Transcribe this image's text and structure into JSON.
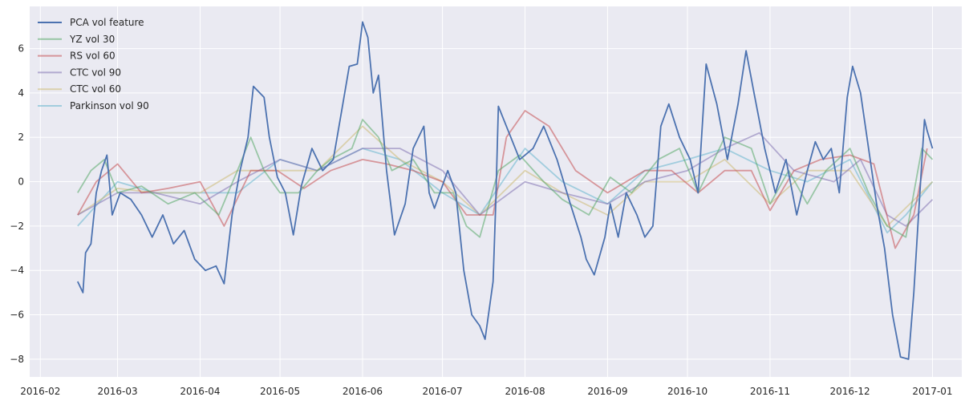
{
  "chart_data": {
    "type": "line",
    "title": "",
    "xlabel": "",
    "ylabel": "",
    "xlim": [
      "2016-01-28",
      "2017-01-12"
    ],
    "ylim": [
      -8.8,
      7.9
    ],
    "grid": true,
    "legend_placement": "top-left",
    "x_ticks": [
      "2016-02",
      "2016-03",
      "2016-04",
      "2016-05",
      "2016-06",
      "2016-07",
      "2016-08",
      "2016-09",
      "2016-10",
      "2016-11",
      "2016-12",
      "2017-01"
    ],
    "x_tick_dates": [
      "2016-02-01",
      "2016-03-01",
      "2016-04-01",
      "2016-05-01",
      "2016-06-01",
      "2016-07-01",
      "2016-08-01",
      "2016-09-01",
      "2016-10-01",
      "2016-11-01",
      "2016-12-01",
      "2017-01-01"
    ],
    "y_ticks": [
      6,
      4,
      2,
      0,
      -2,
      -4,
      -6,
      -8
    ],
    "y_tick_labels": [
      "6",
      "4",
      "2",
      "0",
      "−2",
      "−4",
      "−6",
      "−8"
    ],
    "series": [
      {
        "name": "PCA vol feature",
        "color": "#4c72b0",
        "opacity": 1.0,
        "points": [
          [
            "2016-02-15",
            -4.5
          ],
          [
            "2016-02-17",
            -5.0
          ],
          [
            "2016-02-18",
            -3.2
          ],
          [
            "2016-02-20",
            -2.8
          ],
          [
            "2016-02-22",
            -0.5
          ],
          [
            "2016-02-24",
            0.5
          ],
          [
            "2016-02-26",
            1.2
          ],
          [
            "2016-02-28",
            -1.5
          ],
          [
            "2016-03-02",
            -0.5
          ],
          [
            "2016-03-06",
            -0.8
          ],
          [
            "2016-03-10",
            -1.5
          ],
          [
            "2016-03-14",
            -2.5
          ],
          [
            "2016-03-18",
            -1.5
          ],
          [
            "2016-03-22",
            -2.8
          ],
          [
            "2016-03-26",
            -2.2
          ],
          [
            "2016-03-30",
            -3.5
          ],
          [
            "2016-04-03",
            -4.0
          ],
          [
            "2016-04-07",
            -3.8
          ],
          [
            "2016-04-10",
            -4.6
          ],
          [
            "2016-04-13",
            -1.5
          ],
          [
            "2016-04-16",
            0.5
          ],
          [
            "2016-04-19",
            2.0
          ],
          [
            "2016-04-21",
            4.3
          ],
          [
            "2016-04-25",
            3.8
          ],
          [
            "2016-04-27",
            2.0
          ],
          [
            "2016-04-30",
            0.2
          ],
          [
            "2016-05-03",
            -0.5
          ],
          [
            "2016-05-06",
            -2.4
          ],
          [
            "2016-05-09",
            -0.2
          ],
          [
            "2016-05-13",
            1.5
          ],
          [
            "2016-05-17",
            0.5
          ],
          [
            "2016-05-21",
            1.0
          ],
          [
            "2016-05-25",
            3.8
          ],
          [
            "2016-05-27",
            5.2
          ],
          [
            "2016-05-30",
            5.3
          ],
          [
            "2016-06-01",
            7.2
          ],
          [
            "2016-06-03",
            6.5
          ],
          [
            "2016-06-05",
            4.0
          ],
          [
            "2016-06-07",
            4.8
          ],
          [
            "2016-06-10",
            0.5
          ],
          [
            "2016-06-13",
            -2.4
          ],
          [
            "2016-06-17",
            -1.0
          ],
          [
            "2016-06-20",
            1.5
          ],
          [
            "2016-06-24",
            2.5
          ],
          [
            "2016-06-26",
            -0.5
          ],
          [
            "2016-06-28",
            -1.2
          ],
          [
            "2016-07-03",
            0.5
          ],
          [
            "2016-07-06",
            -0.5
          ],
          [
            "2016-07-09",
            -4.0
          ],
          [
            "2016-07-12",
            -6.0
          ],
          [
            "2016-07-15",
            -6.5
          ],
          [
            "2016-07-17",
            -7.1
          ],
          [
            "2016-07-20",
            -4.5
          ],
          [
            "2016-07-21",
            -1.0
          ],
          [
            "2016-07-22",
            3.4
          ],
          [
            "2016-07-25",
            2.5
          ],
          [
            "2016-07-30",
            1.0
          ],
          [
            "2016-08-04",
            1.5
          ],
          [
            "2016-08-08",
            2.5
          ],
          [
            "2016-08-13",
            1.0
          ],
          [
            "2016-08-18",
            -1.0
          ],
          [
            "2016-08-22",
            -2.5
          ],
          [
            "2016-08-24",
            -3.5
          ],
          [
            "2016-08-27",
            -4.2
          ],
          [
            "2016-08-31",
            -2.5
          ],
          [
            "2016-09-02",
            -1.0
          ],
          [
            "2016-09-05",
            -2.5
          ],
          [
            "2016-09-08",
            -0.5
          ],
          [
            "2016-09-12",
            -1.5
          ],
          [
            "2016-09-15",
            -2.5
          ],
          [
            "2016-09-18",
            -2.0
          ],
          [
            "2016-09-21",
            2.5
          ],
          [
            "2016-09-24",
            3.5
          ],
          [
            "2016-09-28",
            2.0
          ],
          [
            "2016-10-02",
            1.0
          ],
          [
            "2016-10-05",
            -0.5
          ],
          [
            "2016-10-08",
            5.3
          ],
          [
            "2016-10-12",
            3.5
          ],
          [
            "2016-10-16",
            1.0
          ],
          [
            "2016-10-20",
            3.5
          ],
          [
            "2016-10-23",
            5.9
          ],
          [
            "2016-10-26",
            4.0
          ],
          [
            "2016-10-30",
            1.5
          ],
          [
            "2016-11-03",
            -0.5
          ],
          [
            "2016-11-07",
            1.0
          ],
          [
            "2016-11-11",
            -1.5
          ],
          [
            "2016-11-15",
            0.5
          ],
          [
            "2016-11-18",
            1.8
          ],
          [
            "2016-11-21",
            1.0
          ],
          [
            "2016-11-24",
            1.5
          ],
          [
            "2016-11-27",
            -0.5
          ],
          [
            "2016-11-30",
            3.8
          ],
          [
            "2016-12-02",
            5.2
          ],
          [
            "2016-12-05",
            4.0
          ],
          [
            "2016-12-08",
            1.5
          ],
          [
            "2016-12-11",
            -1.0
          ],
          [
            "2016-12-14",
            -3.0
          ],
          [
            "2016-12-17",
            -6.0
          ],
          [
            "2016-12-20",
            -7.9
          ],
          [
            "2016-12-23",
            -8.0
          ],
          [
            "2016-12-25",
            -5.0
          ],
          [
            "2016-12-27",
            -1.0
          ],
          [
            "2016-12-29",
            2.8
          ],
          [
            "2016-12-30",
            2.3
          ],
          [
            "2017-01-01",
            1.5
          ]
        ]
      },
      {
        "name": "YZ vol 30",
        "color": "#55a868",
        "opacity": 0.55,
        "points": [
          [
            "2016-02-15",
            -0.5
          ],
          [
            "2016-02-20",
            0.5
          ],
          [
            "2016-02-25",
            1.0
          ],
          [
            "2016-03-01",
            -0.5
          ],
          [
            "2016-03-10",
            -0.2
          ],
          [
            "2016-03-20",
            -1.0
          ],
          [
            "2016-03-30",
            -0.5
          ],
          [
            "2016-04-08",
            -1.5
          ],
          [
            "2016-04-15",
            0.5
          ],
          [
            "2016-04-20",
            2.0
          ],
          [
            "2016-04-25",
            0.5
          ],
          [
            "2016-05-01",
            -0.5
          ],
          [
            "2016-05-08",
            -0.5
          ],
          [
            "2016-05-15",
            0.5
          ],
          [
            "2016-05-20",
            1.0
          ],
          [
            "2016-05-28",
            1.5
          ],
          [
            "2016-06-01",
            2.8
          ],
          [
            "2016-06-07",
            2.0
          ],
          [
            "2016-06-12",
            0.5
          ],
          [
            "2016-06-20",
            1.0
          ],
          [
            "2016-06-28",
            -0.5
          ],
          [
            "2016-07-05",
            -0.5
          ],
          [
            "2016-07-10",
            -2.0
          ],
          [
            "2016-07-15",
            -2.5
          ],
          [
            "2016-07-22",
            0.5
          ],
          [
            "2016-07-30",
            1.2
          ],
          [
            "2016-08-08",
            0.0
          ],
          [
            "2016-08-15",
            -0.8
          ],
          [
            "2016-08-25",
            -1.5
          ],
          [
            "2016-09-02",
            0.2
          ],
          [
            "2016-09-10",
            -0.5
          ],
          [
            "2016-09-20",
            1.0
          ],
          [
            "2016-09-28",
            1.5
          ],
          [
            "2016-10-05",
            -0.5
          ],
          [
            "2016-10-15",
            2.0
          ],
          [
            "2016-10-25",
            1.5
          ],
          [
            "2016-11-01",
            -1.0
          ],
          [
            "2016-11-08",
            0.5
          ],
          [
            "2016-11-15",
            -1.0
          ],
          [
            "2016-11-22",
            0.5
          ],
          [
            "2016-12-01",
            1.5
          ],
          [
            "2016-12-08",
            -0.5
          ],
          [
            "2016-12-15",
            -2.0
          ],
          [
            "2016-12-22",
            -2.5
          ],
          [
            "2016-12-28",
            1.5
          ],
          [
            "2017-01-01",
            1.0
          ]
        ]
      },
      {
        "name": "RS vol 60",
        "color": "#c44e52",
        "opacity": 0.55,
        "points": [
          [
            "2016-02-15",
            -1.5
          ],
          [
            "2016-02-22",
            0.0
          ],
          [
            "2016-03-01",
            0.8
          ],
          [
            "2016-03-10",
            -0.5
          ],
          [
            "2016-03-20",
            -0.3
          ],
          [
            "2016-04-01",
            0.0
          ],
          [
            "2016-04-10",
            -2.0
          ],
          [
            "2016-04-20",
            0.5
          ],
          [
            "2016-04-30",
            0.5
          ],
          [
            "2016-05-10",
            -0.3
          ],
          [
            "2016-05-20",
            0.5
          ],
          [
            "2016-06-01",
            1.0
          ],
          [
            "2016-06-10",
            0.8
          ],
          [
            "2016-06-20",
            0.5
          ],
          [
            "2016-07-01",
            0.0
          ],
          [
            "2016-07-10",
            -1.5
          ],
          [
            "2016-07-20",
            -1.5
          ],
          [
            "2016-07-25",
            2.0
          ],
          [
            "2016-08-01",
            3.2
          ],
          [
            "2016-08-10",
            2.5
          ],
          [
            "2016-08-20",
            0.5
          ],
          [
            "2016-09-01",
            -0.5
          ],
          [
            "2016-09-15",
            0.5
          ],
          [
            "2016-09-25",
            0.5
          ],
          [
            "2016-10-05",
            -0.5
          ],
          [
            "2016-10-15",
            0.5
          ],
          [
            "2016-10-25",
            0.5
          ],
          [
            "2016-11-01",
            -1.3
          ],
          [
            "2016-11-10",
            0.5
          ],
          [
            "2016-11-20",
            1.0
          ],
          [
            "2016-12-01",
            1.2
          ],
          [
            "2016-12-10",
            0.8
          ],
          [
            "2016-12-18",
            -3.0
          ],
          [
            "2016-12-25",
            -1.5
          ],
          [
            "2016-12-30",
            1.5
          ]
        ]
      },
      {
        "name": "CTC vol 90",
        "color": "#8172b2",
        "opacity": 0.55,
        "points": [
          [
            "2016-02-15",
            -1.5
          ],
          [
            "2016-03-01",
            -0.5
          ],
          [
            "2016-03-15",
            -0.5
          ],
          [
            "2016-04-01",
            -1.0
          ],
          [
            "2016-04-15",
            0.0
          ],
          [
            "2016-05-01",
            1.0
          ],
          [
            "2016-05-15",
            0.5
          ],
          [
            "2016-06-01",
            1.5
          ],
          [
            "2016-06-15",
            1.5
          ],
          [
            "2016-07-01",
            0.5
          ],
          [
            "2016-07-15",
            -1.5
          ],
          [
            "2016-08-01",
            0.0
          ],
          [
            "2016-08-15",
            -0.5
          ],
          [
            "2016-09-01",
            -1.0
          ],
          [
            "2016-09-15",
            0.0
          ],
          [
            "2016-10-01",
            0.5
          ],
          [
            "2016-10-15",
            1.5
          ],
          [
            "2016-10-28",
            2.2
          ],
          [
            "2016-11-10",
            0.5
          ],
          [
            "2016-11-25",
            0.0
          ],
          [
            "2016-12-05",
            1.0
          ],
          [
            "2016-12-15",
            -1.5
          ],
          [
            "2016-12-22",
            -2.0
          ],
          [
            "2017-01-01",
            -0.8
          ]
        ]
      },
      {
        "name": "CTC vol 60",
        "color": "#ccb974",
        "opacity": 0.55,
        "points": [
          [
            "2016-02-15",
            -1.5
          ],
          [
            "2016-03-01",
            -0.3
          ],
          [
            "2016-03-15",
            -0.5
          ],
          [
            "2016-04-01",
            -0.5
          ],
          [
            "2016-04-15",
            0.5
          ],
          [
            "2016-05-01",
            0.5
          ],
          [
            "2016-05-15",
            0.5
          ],
          [
            "2016-06-01",
            2.5
          ],
          [
            "2016-06-15",
            1.0
          ],
          [
            "2016-07-01",
            0.0
          ],
          [
            "2016-07-15",
            -1.5
          ],
          [
            "2016-08-01",
            0.5
          ],
          [
            "2016-08-15",
            -0.5
          ],
          [
            "2016-09-01",
            -1.5
          ],
          [
            "2016-09-15",
            0.0
          ],
          [
            "2016-10-01",
            0.0
          ],
          [
            "2016-10-15",
            1.0
          ],
          [
            "2016-11-01",
            -1.0
          ],
          [
            "2016-11-15",
            0.5
          ],
          [
            "2016-12-01",
            0.5
          ],
          [
            "2016-12-15",
            -2.0
          ],
          [
            "2017-01-01",
            0.0
          ]
        ]
      },
      {
        "name": "Parkinson vol 90",
        "color": "#64b5cd",
        "opacity": 0.55,
        "points": [
          [
            "2016-02-15",
            -2.0
          ],
          [
            "2016-03-01",
            0.0
          ],
          [
            "2016-03-15",
            -0.5
          ],
          [
            "2016-04-01",
            -0.5
          ],
          [
            "2016-04-15",
            -0.5
          ],
          [
            "2016-05-01",
            1.0
          ],
          [
            "2016-05-15",
            0.5
          ],
          [
            "2016-06-01",
            1.5
          ],
          [
            "2016-06-15",
            1.0
          ],
          [
            "2016-07-01",
            -0.5
          ],
          [
            "2016-07-15",
            -1.5
          ],
          [
            "2016-08-01",
            1.5
          ],
          [
            "2016-08-15",
            0.0
          ],
          [
            "2016-09-01",
            -1.0
          ],
          [
            "2016-09-15",
            0.5
          ],
          [
            "2016-10-01",
            1.0
          ],
          [
            "2016-10-15",
            1.5
          ],
          [
            "2016-11-01",
            0.5
          ],
          [
            "2016-11-15",
            0.0
          ],
          [
            "2016-12-01",
            1.0
          ],
          [
            "2016-12-15",
            -2.3
          ],
          [
            "2016-12-22",
            -1.5
          ],
          [
            "2017-01-01",
            0.0
          ]
        ]
      }
    ]
  }
}
